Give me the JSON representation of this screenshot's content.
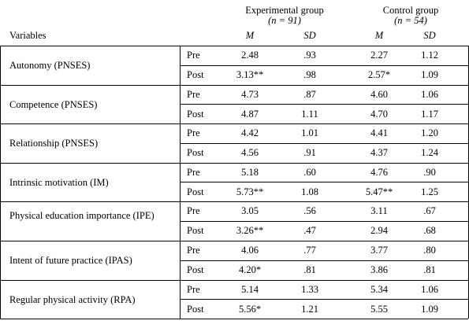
{
  "header": {
    "experimental": {
      "label": "Experimental group",
      "n": "(n = 91)"
    },
    "control": {
      "label": "Control group",
      "n": "(n = 54)"
    },
    "variables": "Variables",
    "m": "M",
    "sd": "SD"
  },
  "rows": [
    {
      "variable": "Autonomy (PNSES)",
      "pre": {
        "phase": "Pre",
        "exp_m": "2.48",
        "exp_sd": ".93",
        "ctl_m": "2.27",
        "ctl_sd": "1.12"
      },
      "post": {
        "phase": "Post",
        "exp_m": "3.13**",
        "exp_sd": ".98",
        "ctl_m": "2.57*",
        "ctl_sd": "1.09"
      }
    },
    {
      "variable": "Competence (PNSES)",
      "pre": {
        "phase": "Pre",
        "exp_m": "4.73",
        "exp_sd": ".87",
        "ctl_m": "4.60",
        "ctl_sd": "1.06"
      },
      "post": {
        "phase": "Post",
        "exp_m": "4.87",
        "exp_sd": "1.11",
        "ctl_m": "4.70",
        "ctl_sd": "1.17"
      }
    },
    {
      "variable": "Relationship (PNSES)",
      "pre": {
        "phase": "Pre",
        "exp_m": "4.42",
        "exp_sd": "1.01",
        "ctl_m": "4.41",
        "ctl_sd": "1.20"
      },
      "post": {
        "phase": "Post",
        "exp_m": "4.56",
        "exp_sd": ".91",
        "ctl_m": "4.37",
        "ctl_sd": "1.24"
      }
    },
    {
      "variable": "Intrinsic motivation (IM)",
      "pre": {
        "phase": "Pre",
        "exp_m": "5.18",
        "exp_sd": ".60",
        "ctl_m": "4.76",
        "ctl_sd": ".90"
      },
      "post": {
        "phase": "Post",
        "exp_m": "5.73**",
        "exp_sd": "1.08",
        "ctl_m": "5.47**",
        "ctl_sd": "1.25"
      }
    },
    {
      "variable": "Physical education importance (IPE)",
      "pre": {
        "phase": "Pre",
        "exp_m": "3.05",
        "exp_sd": ".56",
        "ctl_m": "3.11",
        "ctl_sd": ".67"
      },
      "post": {
        "phase": "Post",
        "exp_m": "3.26**",
        "exp_sd": ".47",
        "ctl_m": "2.94",
        "ctl_sd": ".68"
      }
    },
    {
      "variable": "Intent of future practice (IPAS)",
      "pre": {
        "phase": "Pre",
        "exp_m": "4.06",
        "exp_sd": ".77",
        "ctl_m": "3.77",
        "ctl_sd": ".80"
      },
      "post": {
        "phase": "Post",
        "exp_m": "4.20*",
        "exp_sd": ".81",
        "ctl_m": "3.86",
        "ctl_sd": ".81"
      }
    },
    {
      "variable": "Regular physical activity (RPA)",
      "pre": {
        "phase": "Pre",
        "exp_m": "5.14",
        "exp_sd": "1.33",
        "ctl_m": "5.34",
        "ctl_sd": "1.06"
      },
      "post": {
        "phase": "Post",
        "exp_m": "5.56*",
        "exp_sd": "1.21",
        "ctl_m": "5.55",
        "ctl_sd": "1.09"
      }
    }
  ]
}
